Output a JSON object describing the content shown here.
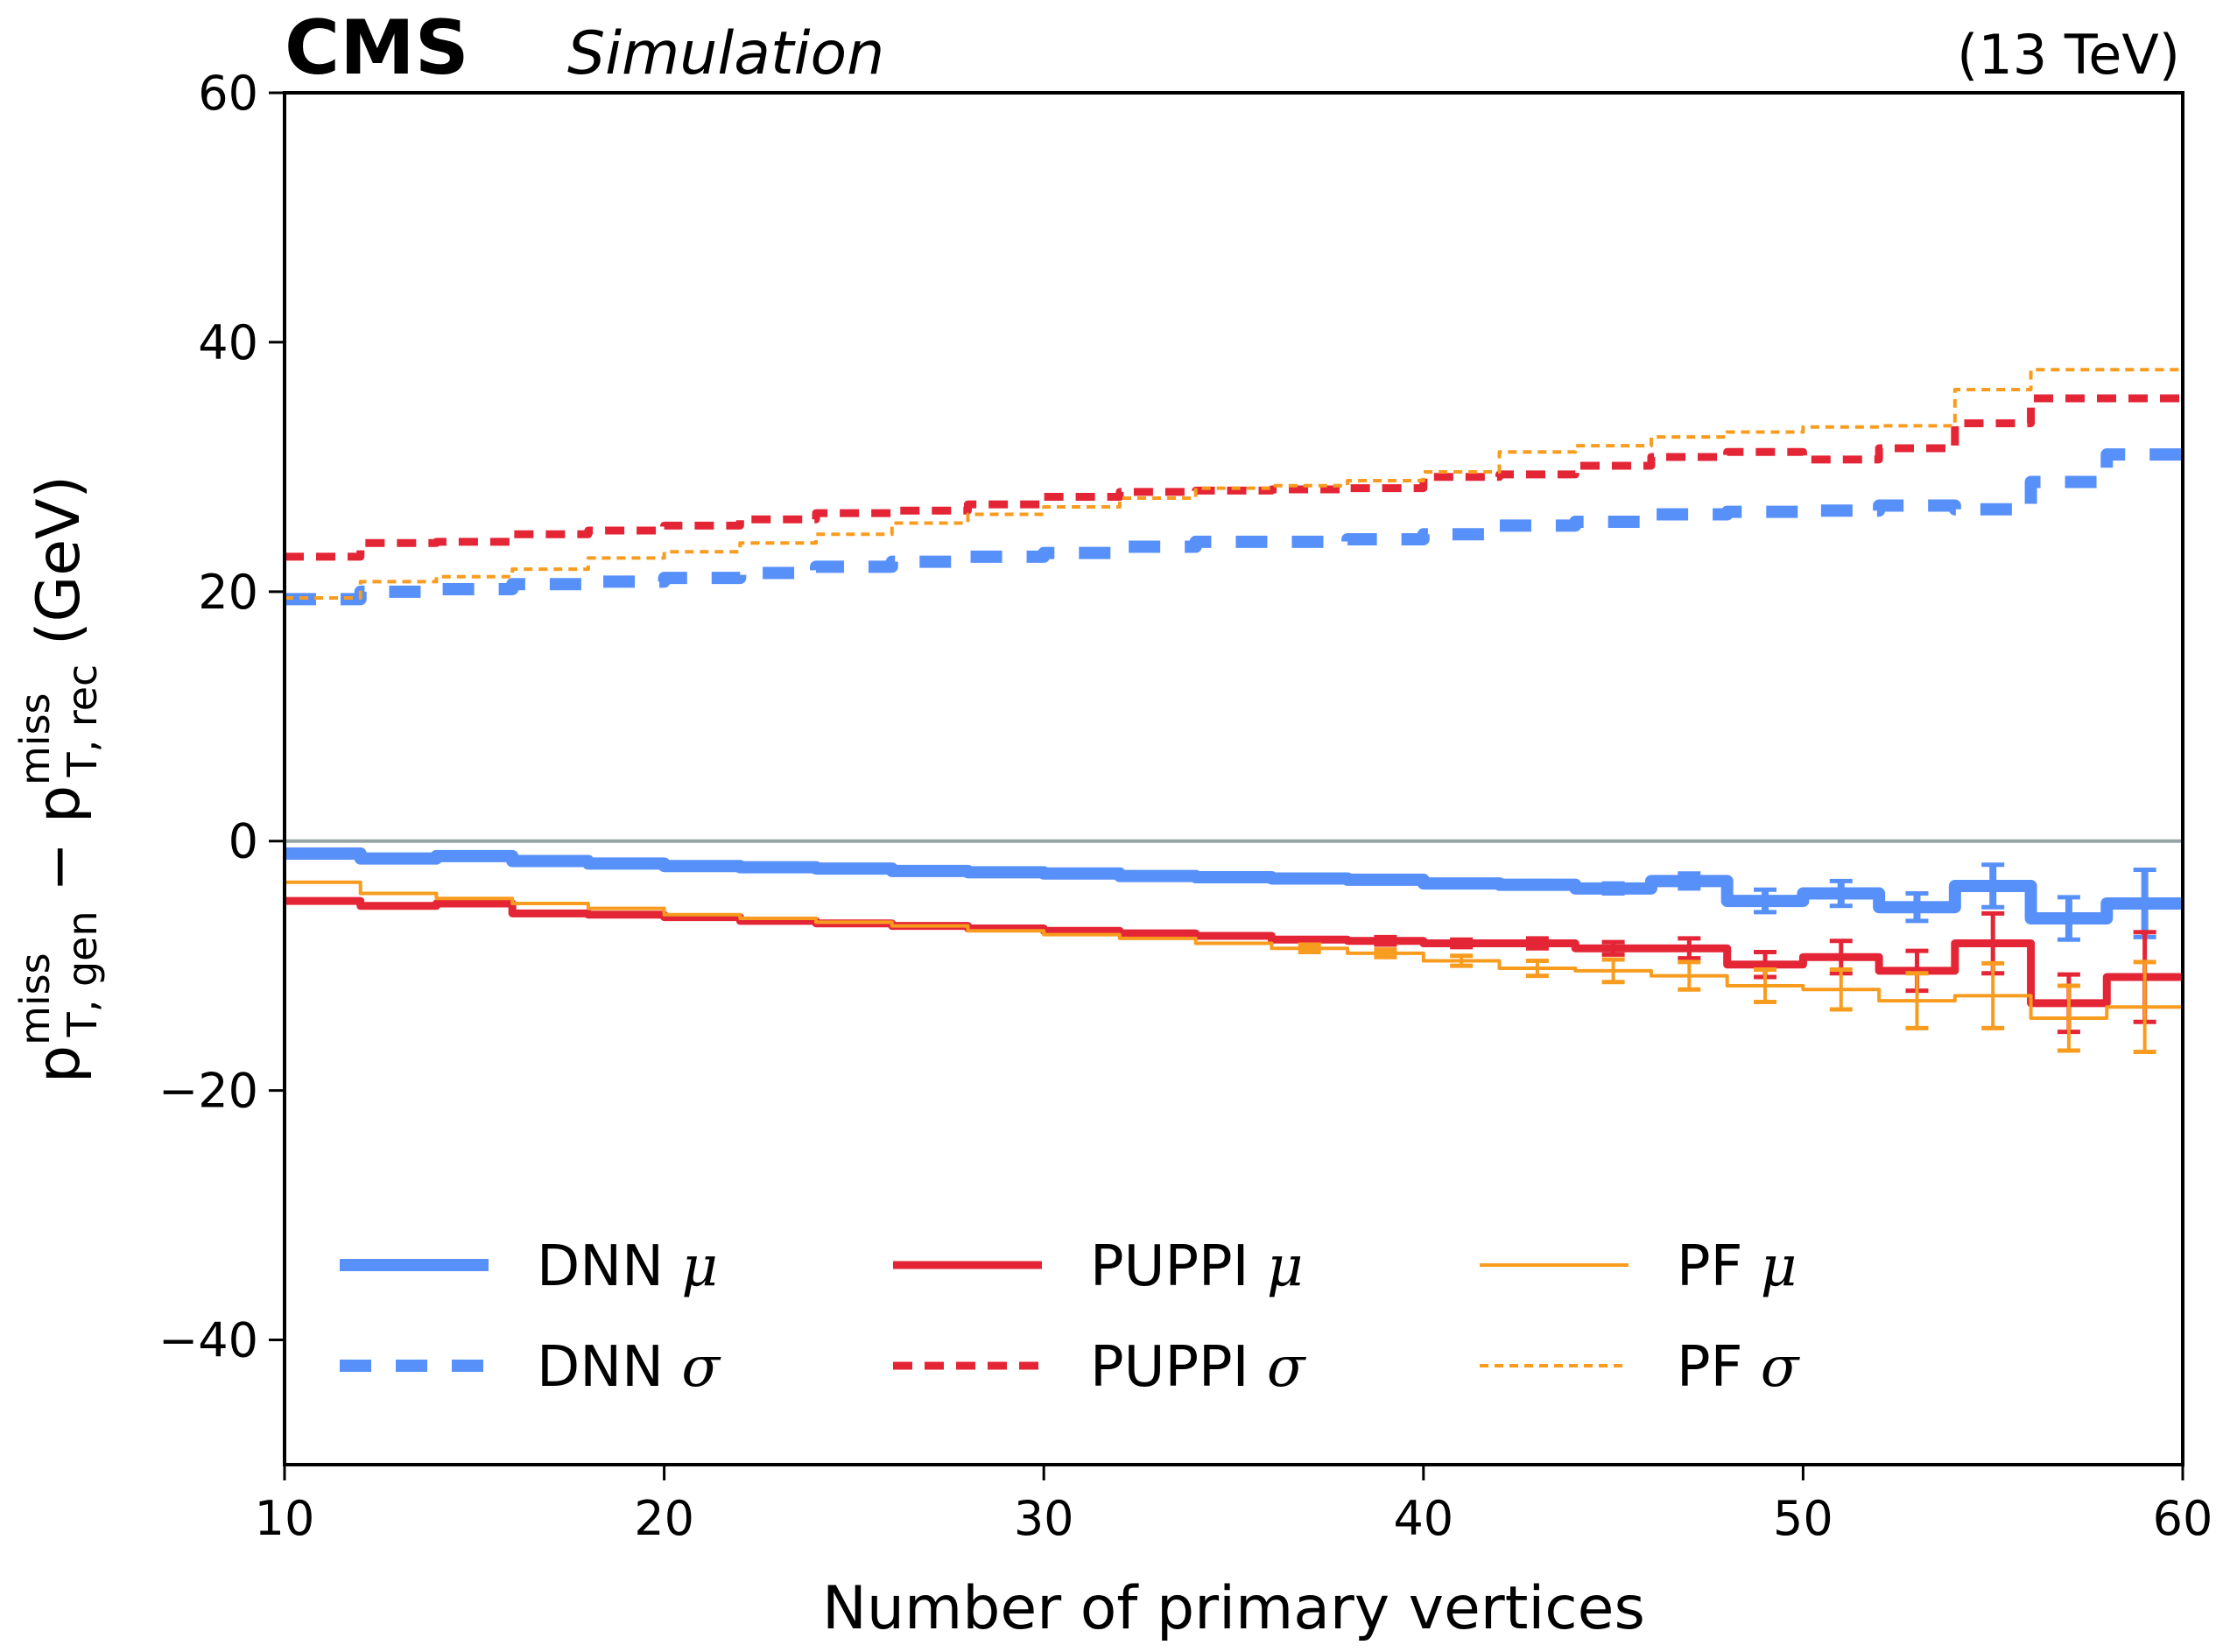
{
  "chart_data": {
    "type": "line",
    "style": "step-histogram",
    "header": {
      "experiment": "CMS",
      "label": "Simulation",
      "energy": "(13 TeV)"
    },
    "xlabel": "Number of primary vertices",
    "ylabel": {
      "p": "p",
      "sup1": "miss",
      "sub1": "T, gen",
      "minus": " − ",
      "sup2": "miss",
      "sub2": "T, rec",
      "unit": " (GeV)"
    },
    "xlim": [
      10,
      60
    ],
    "ylim": [
      -50,
      60
    ],
    "xticks": [
      10,
      20,
      30,
      40,
      50,
      60
    ],
    "xtick_labels": [
      "10",
      "20",
      "30",
      "40",
      "50",
      "60"
    ],
    "yticks": [
      -40,
      -20,
      0,
      20,
      40,
      60
    ],
    "ytick_labels": [
      "−40",
      "−20",
      "0",
      "20",
      "40",
      "60"
    ],
    "grid": false,
    "reference_line": {
      "y": 0,
      "color": "#95a5a6"
    },
    "bin_edges": [
      10,
      12,
      14,
      16,
      18,
      20,
      22,
      24,
      26,
      28,
      30,
      32,
      34,
      36,
      38,
      40,
      42,
      44,
      46,
      48,
      50,
      52,
      54,
      56,
      58,
      60
    ],
    "series": [
      {
        "name": "DNN μ",
        "label_main": "DNN",
        "label_greek": "μ",
        "kind": "mu",
        "color": "#5890fa",
        "values": [
          -1.0,
          -1.4,
          -1.2,
          -1.6,
          -1.8,
          -2.0,
          -2.1,
          -2.2,
          -2.4,
          -2.5,
          -2.6,
          -2.8,
          -2.9,
          -3.0,
          -3.1,
          -3.4,
          -3.5,
          -3.8,
          -3.2,
          -4.8,
          -4.2,
          -5.3,
          -3.6,
          -6.2,
          -5.0,
          -7.6
        ],
        "errors": [
          0.1,
          0.1,
          0.1,
          0.1,
          0.1,
          0.1,
          0.1,
          0.1,
          0.1,
          0.1,
          0.1,
          0.1,
          0.1,
          0.1,
          0.2,
          0.2,
          0.3,
          0.4,
          0.6,
          0.9,
          1.0,
          1.1,
          1.7,
          1.7,
          2.7,
          1.8
        ]
      },
      {
        "name": "DNN σ",
        "label_main": "DNN",
        "label_greek": "σ",
        "kind": "sigma",
        "color": "#5890fa",
        "values": [
          19.4,
          20.0,
          20.2,
          20.6,
          20.8,
          21.1,
          21.5,
          22.0,
          22.4,
          22.8,
          23.1,
          23.6,
          24.0,
          24.0,
          24.2,
          24.6,
          25.3,
          25.6,
          26.2,
          26.4,
          26.5,
          26.9,
          26.6,
          28.8,
          31.0,
          29.6
        ]
      },
      {
        "name": "PUPPI μ",
        "label_main": "PUPPI",
        "label_greek": "μ",
        "kind": "mu",
        "color": "#e42536",
        "values": [
          -4.8,
          -5.2,
          -5.0,
          -5.8,
          -5.9,
          -6.1,
          -6.4,
          -6.6,
          -6.8,
          -7.0,
          -7.2,
          -7.4,
          -7.6,
          -7.9,
          -8.0,
          -8.2,
          -8.2,
          -8.6,
          -8.6,
          -9.9,
          -9.3,
          -10.4,
          -8.2,
          -13.0,
          -10.9,
          -15.2
        ],
        "errors": [
          0.1,
          0.1,
          0.1,
          0.1,
          0.1,
          0.1,
          0.1,
          0.1,
          0.1,
          0.1,
          0.1,
          0.1,
          0.2,
          0.2,
          0.3,
          0.3,
          0.4,
          0.5,
          0.8,
          1.0,
          1.3,
          1.6,
          2.4,
          2.3,
          3.6,
          2.3
        ]
      },
      {
        "name": "PUPPI σ",
        "label_main": "PUPPI",
        "label_greek": "σ",
        "kind": "sigma",
        "color": "#e42536",
        "values": [
          22.8,
          23.9,
          24.0,
          24.6,
          24.9,
          25.3,
          25.8,
          26.3,
          26.5,
          27.0,
          27.6,
          28.0,
          28.1,
          28.2,
          28.3,
          29.2,
          29.4,
          30.1,
          30.8,
          31.2,
          30.6,
          31.5,
          33.5,
          35.5,
          35.5,
          33.8
        ]
      },
      {
        "name": "PF μ",
        "label_main": "PF",
        "label_greek": "μ",
        "kind": "mu",
        "color": "#f89c20",
        "values": [
          -3.3,
          -4.2,
          -4.6,
          -5.0,
          -5.4,
          -5.9,
          -6.2,
          -6.5,
          -6.8,
          -7.2,
          -7.5,
          -7.8,
          -8.2,
          -8.6,
          -9.0,
          -9.6,
          -10.2,
          -10.4,
          -10.8,
          -11.6,
          -11.9,
          -12.8,
          -12.4,
          -14.2,
          -13.3,
          -15.6
        ],
        "errors": [
          0.1,
          0.1,
          0.1,
          0.1,
          0.1,
          0.1,
          0.1,
          0.1,
          0.1,
          0.1,
          0.1,
          0.2,
          0.2,
          0.3,
          0.3,
          0.4,
          0.6,
          0.9,
          1.1,
          1.3,
          1.6,
          2.2,
          2.6,
          2.6,
          3.6,
          2.4
        ]
      },
      {
        "name": "PF σ",
        "label_main": "PF",
        "label_greek": "σ",
        "kind": "sigma",
        "color": "#f89c20",
        "values": [
          19.5,
          20.8,
          21.2,
          21.8,
          22.7,
          23.2,
          23.9,
          24.6,
          25.5,
          26.2,
          26.8,
          27.5,
          28.3,
          28.5,
          28.9,
          29.6,
          31.2,
          31.7,
          32.4,
          32.8,
          33.2,
          33.3,
          36.2,
          37.8,
          37.8,
          37.2
        ]
      }
    ],
    "legend": {
      "placement": "lower-center",
      "columns": 3,
      "entries": [
        {
          "main": "DNN",
          "greek": "μ"
        },
        {
          "main": "DNN",
          "greek": "σ"
        },
        {
          "main": "PUPPI",
          "greek": "μ"
        },
        {
          "main": "PUPPI",
          "greek": "σ"
        },
        {
          "main": "PF",
          "greek": "μ"
        },
        {
          "main": "PF",
          "greek": "σ"
        }
      ]
    }
  }
}
